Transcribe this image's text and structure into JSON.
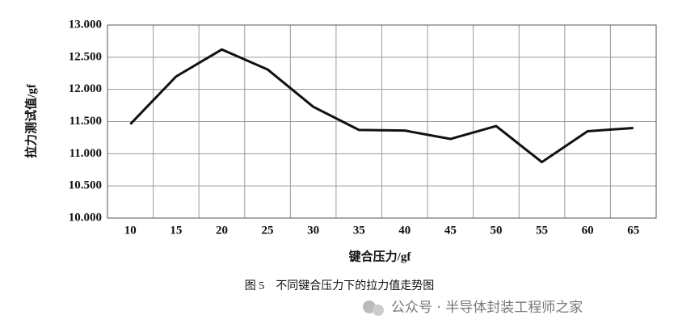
{
  "chart_data": {
    "type": "line",
    "x_label": "键合压力/gf",
    "y_label": "拉力测试值/gf",
    "caption": "图 5　不同键合压力下的拉力值走势图",
    "watermark": "公众号 · 半导体封装工程师之家",
    "categories": [
      "10",
      "15",
      "20",
      "25",
      "30",
      "35",
      "40",
      "45",
      "50",
      "55",
      "60",
      "65"
    ],
    "values": [
      11.46,
      12.2,
      12.62,
      12.31,
      11.73,
      11.37,
      11.36,
      11.23,
      11.43,
      10.87,
      11.35,
      11.4
    ],
    "color": "#111111",
    "ylim": [
      10,
      13
    ],
    "yticks": [
      {
        "value": 10,
        "label": "10.000"
      },
      {
        "value": 10.5,
        "label": "10.500"
      },
      {
        "value": 11,
        "label": "11.000"
      },
      {
        "value": 11.5,
        "label": "11.500"
      },
      {
        "value": 12,
        "label": "12.000"
      },
      {
        "value": 12.5,
        "label": "12.500"
      },
      {
        "value": 13,
        "label": "13.000"
      }
    ],
    "grid": true
  }
}
